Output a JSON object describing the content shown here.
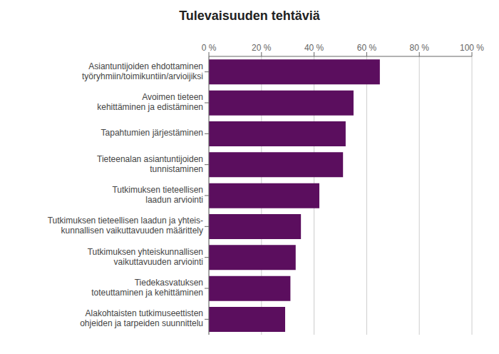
{
  "chart_data": {
    "type": "bar",
    "orientation": "horizontal",
    "title": "Tulevaisuuden tehtäviä",
    "categories": [
      "Asiantuntijoiden ehdottaminen\ntyöryhmiin/toimikuntiin/arvioijiksi",
      "Avoimen tieteen\nkehittäminen ja edistäminen",
      "Tapahtumien järjestäminen",
      "Tieteenalan asiantuntijoiden\ntunnistaminen",
      "Tutkimuksen tieteellisen\nlaadun arviointi",
      "Tutkimuksen tieteellisen laadun ja yhteis-\nkunnallisen vaikuttavuuden määrittely",
      "Tutkimuksen yhteiskunnallisen\nvaikuttavuuden arviointi",
      "Tiedekasvatuksen\ntoteuttaminen ja kehittäminen",
      "Alakohtaisten tutkimuseettisten\nohjeiden ja tarpeiden suunnittelu"
    ],
    "values": [
      0.65,
      0.55,
      0.52,
      0.51,
      0.42,
      0.35,
      0.33,
      0.31,
      0.29
    ],
    "color": "#5b0e5e",
    "xlim": [
      0,
      1
    ],
    "xticks": [
      {
        "value": 0,
        "label": "0 %"
      },
      {
        "value": 0.2,
        "label": "20 %"
      },
      {
        "value": 0.4,
        "label": "40 %"
      },
      {
        "value": 0.6,
        "label": "60 %"
      },
      {
        "value": 0.8,
        "label": "80 %"
      },
      {
        "value": 1,
        "label": "100 %"
      }
    ],
    "grid": true
  }
}
